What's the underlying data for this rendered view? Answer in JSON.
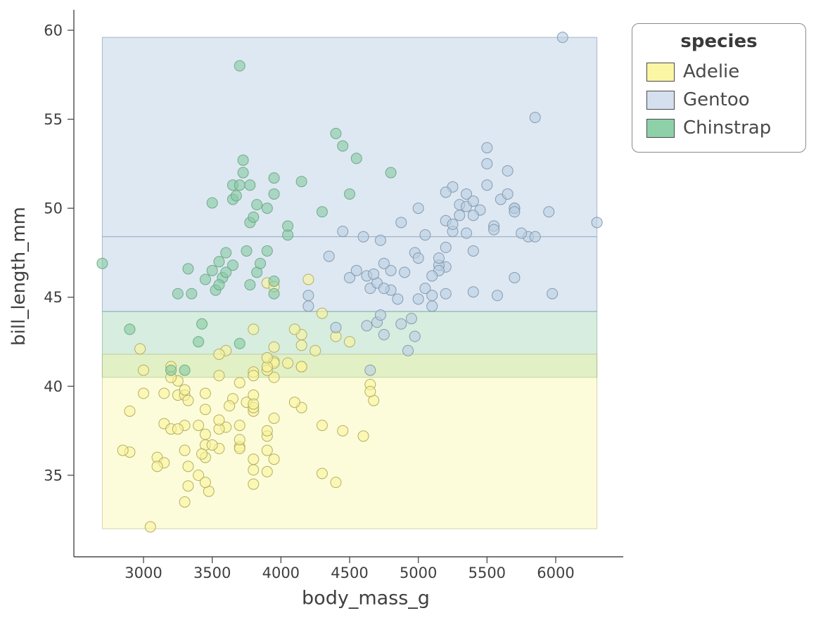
{
  "chart_data": {
    "type": "scatter",
    "title": "",
    "xlabel": "body_mass_g",
    "ylabel": "bill_length_mm",
    "xlim": [
      2500,
      6500
    ],
    "ylim": [
      30.5,
      61
    ],
    "xticks": [
      3000,
      3500,
      4000,
      4500,
      5000,
      5500,
      6000
    ],
    "yticks": [
      35,
      40,
      45,
      50,
      55,
      60
    ],
    "grid": false,
    "band_x_extent": [
      2700,
      6300
    ],
    "bands": [
      {
        "species": "Gentoo",
        "ymin": 44.2,
        "ymax": 59.6,
        "fill": "rgba(176,200,223,0.42)",
        "edge": "rgba(110,135,160,0.55)"
      },
      {
        "species": "Chinstrap",
        "ymin": 40.5,
        "ymax": 44.2,
        "fill": "rgba(120,195,150,0.30)",
        "edge": "rgba(100,150,120,0.50)"
      },
      {
        "species": "Adelie",
        "ymin": 32.0,
        "ymax": 41.8,
        "fill": "rgba(250,246,150,0.35)",
        "edge": "rgba(170,170,110,0.50)"
      }
    ],
    "ref_lines": [
      {
        "y": 48.4,
        "color": "rgba(110,135,160,0.60)"
      }
    ],
    "legend": {
      "title": "species",
      "position": "upper right, outside plot",
      "items": [
        {
          "label": "Adelie",
          "color": "#fbf6a4"
        },
        {
          "label": "Gentoo",
          "color": "#d4e0ee"
        },
        {
          "label": "Chinstrap",
          "color": "#8ed1a8"
        }
      ]
    },
    "series": [
      {
        "name": "Adelie",
        "color": "#faf39b",
        "edge": "#b0ab62",
        "points": [
          [
            3750,
            39.1
          ],
          [
            3800,
            39.5
          ],
          [
            3250,
            40.3
          ],
          [
            3450,
            36.7
          ],
          [
            3650,
            39.3
          ],
          [
            3625,
            38.9
          ],
          [
            4675,
            39.2
          ],
          [
            3475,
            34.1
          ],
          [
            4250,
            42.0
          ],
          [
            3300,
            37.8
          ],
          [
            3700,
            37.8
          ],
          [
            3200,
            41.1
          ],
          [
            3800,
            38.6
          ],
          [
            4400,
            34.6
          ],
          [
            3700,
            36.6
          ],
          [
            3450,
            38.7
          ],
          [
            4500,
            42.5
          ],
          [
            3325,
            34.4
          ],
          [
            4200,
            46.0
          ],
          [
            3400,
            37.8
          ],
          [
            3600,
            37.7
          ],
          [
            3800,
            35.9
          ],
          [
            3950,
            38.2
          ],
          [
            3800,
            38.8
          ],
          [
            3800,
            35.3
          ],
          [
            3550,
            40.6
          ],
          [
            3200,
            40.5
          ],
          [
            3150,
            37.9
          ],
          [
            3950,
            40.5
          ],
          [
            3250,
            39.5
          ],
          [
            3900,
            37.2
          ],
          [
            3300,
            39.5
          ],
          [
            3900,
            40.9
          ],
          [
            3900,
            36.4
          ],
          [
            3325,
            39.2
          ],
          [
            4150,
            38.8
          ],
          [
            3950,
            42.2
          ],
          [
            3550,
            37.6
          ],
          [
            3300,
            39.8
          ],
          [
            3700,
            36.5
          ],
          [
            3800,
            40.8
          ],
          [
            3450,
            36.0
          ],
          [
            4300,
            44.1
          ],
          [
            3700,
            37.0
          ],
          [
            3450,
            39.6
          ],
          [
            4150,
            41.1
          ],
          [
            3900,
            37.5
          ],
          [
            3100,
            36.0
          ],
          [
            4150,
            42.3
          ],
          [
            3000,
            39.6
          ],
          [
            4650,
            40.1
          ],
          [
            3400,
            35.0
          ],
          [
            3600,
            42.0
          ],
          [
            3800,
            34.5
          ],
          [
            3950,
            41.4
          ],
          [
            3800,
            39.0
          ],
          [
            3800,
            40.6
          ],
          [
            3550,
            36.5
          ],
          [
            3200,
            37.6
          ],
          [
            3150,
            35.7
          ],
          [
            3950,
            41.3
          ],
          [
            3250,
            37.6
          ],
          [
            3900,
            41.1
          ],
          [
            3300,
            36.4
          ],
          [
            3900,
            41.6
          ],
          [
            3325,
            35.5
          ],
          [
            4150,
            41.1
          ],
          [
            3950,
            35.9
          ],
          [
            3550,
            41.8
          ],
          [
            3300,
            33.5
          ],
          [
            4650,
            39.7
          ],
          [
            3150,
            39.6
          ],
          [
            3900,
            45.8
          ],
          [
            3100,
            35.5
          ],
          [
            4400,
            42.8
          ],
          [
            3000,
            40.9
          ],
          [
            4600,
            37.2
          ],
          [
            3425,
            36.2
          ],
          [
            2975,
            42.1
          ],
          [
            3450,
            34.6
          ],
          [
            4150,
            42.9
          ],
          [
            3500,
            36.7
          ],
          [
            4300,
            35.1
          ],
          [
            3450,
            37.3
          ],
          [
            4050,
            41.3
          ],
          [
            2900,
            36.3
          ],
          [
            3050,
            32.1
          ],
          [
            2850,
            36.4
          ],
          [
            2900,
            38.6
          ],
          [
            3550,
            38.1
          ],
          [
            3800,
            43.2
          ],
          [
            4100,
            43.2
          ],
          [
            3950,
            45.6
          ],
          [
            3700,
            40.2
          ],
          [
            3900,
            35.2
          ],
          [
            4450,
            37.5
          ],
          [
            4300,
            37.8
          ],
          [
            4100,
            39.1
          ]
        ]
      },
      {
        "name": "Gentoo",
        "color": "#b9cfe2",
        "edge": "#8396ab",
        "points": [
          [
            4500,
            46.1
          ],
          [
            5700,
            50.0
          ],
          [
            4450,
            48.7
          ],
          [
            5700,
            50.0
          ],
          [
            5400,
            47.6
          ],
          [
            4550,
            46.5
          ],
          [
            4800,
            45.4
          ],
          [
            5200,
            46.7
          ],
          [
            4400,
            43.3
          ],
          [
            5150,
            46.8
          ],
          [
            4650,
            40.9
          ],
          [
            5550,
            49.0
          ],
          [
            4650,
            45.5
          ],
          [
            4600,
            48.4
          ],
          [
            4700,
            45.8
          ],
          [
            5200,
            49.3
          ],
          [
            4925,
            42.0
          ],
          [
            4875,
            49.2
          ],
          [
            4625,
            46.2
          ],
          [
            5250,
            48.7
          ],
          [
            5300,
            50.2
          ],
          [
            4200,
            45.1
          ],
          [
            5150,
            46.5
          ],
          [
            4675,
            46.3
          ],
          [
            4750,
            42.9
          ],
          [
            5700,
            46.1
          ],
          [
            4200,
            44.5
          ],
          [
            5200,
            47.8
          ],
          [
            4725,
            48.2
          ],
          [
            5000,
            50.0
          ],
          [
            4350,
            47.3
          ],
          [
            4975,
            42.8
          ],
          [
            5575,
            45.1
          ],
          [
            6050,
            59.6
          ],
          [
            5250,
            49.1
          ],
          [
            5550,
            48.8
          ],
          [
            4975,
            47.5
          ],
          [
            4950,
            43.8
          ],
          [
            5500,
            51.3
          ],
          [
            4750,
            45.5
          ],
          [
            5975,
            45.2
          ],
          [
            6300,
            49.2
          ],
          [
            5850,
            55.1
          ],
          [
            5350,
            50.1
          ],
          [
            5050,
            48.5
          ],
          [
            5150,
            47.2
          ],
          [
            5400,
            45.3
          ],
          [
            5500,
            53.4
          ],
          [
            5500,
            52.5
          ],
          [
            5250,
            51.2
          ],
          [
            5200,
            50.9
          ],
          [
            4850,
            44.9
          ],
          [
            4875,
            43.5
          ],
          [
            4800,
            46.5
          ],
          [
            4700,
            43.6
          ],
          [
            4750,
            46.9
          ],
          [
            5050,
            45.5
          ],
          [
            5000,
            44.9
          ],
          [
            5100,
            45.1
          ],
          [
            5650,
            52.1
          ],
          [
            5700,
            49.8
          ],
          [
            5800,
            48.4
          ],
          [
            5300,
            49.6
          ],
          [
            5350,
            50.8
          ],
          [
            4625,
            43.4
          ],
          [
            4725,
            44.0
          ],
          [
            5000,
            47.2
          ],
          [
            5100,
            46.2
          ],
          [
            5450,
            49.9
          ],
          [
            5350,
            48.6
          ],
          [
            5600,
            50.5
          ],
          [
            5400,
            49.6
          ],
          [
            4900,
            46.4
          ],
          [
            5750,
            48.6
          ],
          [
            5200,
            45.2
          ],
          [
            5400,
            50.4
          ],
          [
            5100,
            44.5
          ],
          [
            5650,
            50.8
          ],
          [
            5850,
            48.4
          ],
          [
            5950,
            49.8
          ]
        ]
      },
      {
        "name": "Chinstrap",
        "color": "#86c9a1",
        "edge": "#6aa884",
        "points": [
          [
            3500,
            46.5
          ],
          [
            3900,
            50.0
          ],
          [
            3650,
            51.3
          ],
          [
            3525,
            45.4
          ],
          [
            3725,
            52.7
          ],
          [
            3950,
            45.2
          ],
          [
            3575,
            46.1
          ],
          [
            3700,
            51.3
          ],
          [
            3450,
            46.0
          ],
          [
            3775,
            51.3
          ],
          [
            3325,
            46.6
          ],
          [
            3950,
            51.7
          ],
          [
            3550,
            47.0
          ],
          [
            3725,
            52.0
          ],
          [
            3950,
            45.9
          ],
          [
            3650,
            50.5
          ],
          [
            3500,
            50.3
          ],
          [
            3700,
            58.0
          ],
          [
            3825,
            46.4
          ],
          [
            3775,
            49.2
          ],
          [
            3700,
            42.4
          ],
          [
            4050,
            48.5
          ],
          [
            2900,
            43.2
          ],
          [
            2700,
            46.9
          ],
          [
            3200,
            40.9
          ],
          [
            3800,
            49.5
          ],
          [
            3950,
            50.8
          ],
          [
            4800,
            52.0
          ],
          [
            3350,
            45.2
          ],
          [
            3650,
            46.8
          ],
          [
            3550,
            45.7
          ],
          [
            4400,
            54.2
          ],
          [
            4300,
            49.8
          ],
          [
            4150,
            51.5
          ],
          [
            3400,
            42.5
          ],
          [
            3600,
            47.5
          ],
          [
            3675,
            50.7
          ],
          [
            3850,
            46.9
          ],
          [
            3250,
            45.2
          ],
          [
            3750,
            47.6
          ],
          [
            4500,
            50.8
          ],
          [
            4450,
            53.5
          ],
          [
            4550,
            52.8
          ],
          [
            3300,
            40.9
          ],
          [
            3425,
            43.5
          ],
          [
            3900,
            47.6
          ],
          [
            4050,
            49.0
          ],
          [
            3600,
            46.4
          ],
          [
            3825,
            50.2
          ],
          [
            3775,
            45.7
          ]
        ]
      }
    ]
  }
}
